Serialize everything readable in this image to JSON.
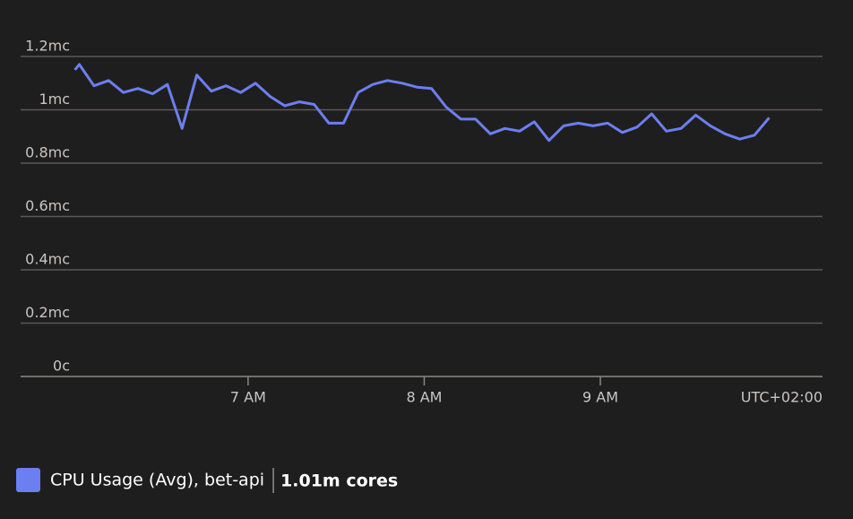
{
  "chart_data": {
    "type": "line",
    "x": [
      361,
      362.5,
      367.5,
      372.5,
      377.5,
      382.5,
      387.5,
      392.5,
      397.5,
      402.5,
      407.5,
      412.5,
      417.5,
      422.5,
      427.5,
      432.5,
      437.5,
      442.5,
      447.5,
      452.5,
      457.5,
      462.5,
      467.5,
      472.5,
      477.5,
      482.5,
      487.5,
      492.5,
      497.5,
      502.5,
      507.5,
      512.5,
      517.5,
      522.5,
      527.5,
      532.5,
      537.5,
      542.5,
      547.5,
      552.5,
      557.5,
      562.5,
      567.5,
      572.5,
      577.5,
      582.5,
      587.5,
      592.5,
      597.5
    ],
    "series": [
      {
        "name": "CPU Usage (Avg), bet-api",
        "color": "#6b7ff0",
        "values": [
          1.15,
          1.17,
          1.09,
          1.11,
          1.065,
          1.08,
          1.06,
          1.095,
          0.93,
          1.13,
          1.07,
          1.09,
          1.065,
          1.1,
          1.05,
          1.015,
          1.03,
          1.02,
          0.95,
          0.95,
          1.065,
          1.095,
          1.11,
          1.1,
          1.085,
          1.08,
          1.01,
          0.965,
          0.965,
          0.91,
          0.93,
          0.92,
          0.955,
          0.885,
          0.94,
          0.95,
          0.94,
          0.95,
          0.915,
          0.935,
          0.985,
          0.92,
          0.93,
          0.98,
          0.94,
          0.91,
          0.89,
          0.905,
          0.97
        ]
      }
    ],
    "xlim": [
      342.5,
      615.7
    ],
    "xticks": [
      {
        "value": 420,
        "label": "7 AM"
      },
      {
        "value": 480,
        "label": "8 AM"
      },
      {
        "value": 540,
        "label": "9 AM"
      }
    ],
    "ylim": [
      0,
      1.2
    ],
    "yticks": [
      {
        "value": 0,
        "label": "0c"
      },
      {
        "value": 0.2,
        "label": "0.2mc"
      },
      {
        "value": 0.4,
        "label": "0.4mc"
      },
      {
        "value": 0.6,
        "label": "0.6mc"
      },
      {
        "value": 0.8,
        "label": "0.8mc"
      },
      {
        "value": 1,
        "label": "1mc"
      },
      {
        "value": 1.2,
        "label": "1.2mc"
      }
    ],
    "grid": true,
    "timezone_label": "UTC+02:00",
    "legend_value": "1.01m cores"
  }
}
